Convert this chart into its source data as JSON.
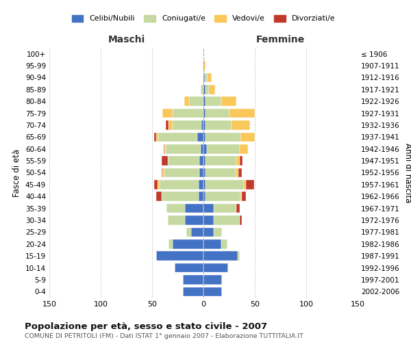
{
  "age_groups": [
    "0-4",
    "5-9",
    "10-14",
    "15-19",
    "20-24",
    "25-29",
    "30-34",
    "35-39",
    "40-44",
    "45-49",
    "50-54",
    "55-59",
    "60-64",
    "65-69",
    "70-74",
    "75-79",
    "80-84",
    "85-89",
    "90-94",
    "95-99",
    "100+"
  ],
  "birth_years": [
    "2002-2006",
    "1997-2001",
    "1992-1996",
    "1987-1991",
    "1982-1986",
    "1977-1981",
    "1972-1976",
    "1967-1971",
    "1962-1966",
    "1957-1961",
    "1952-1956",
    "1947-1951",
    "1942-1946",
    "1937-1941",
    "1932-1936",
    "1927-1931",
    "1922-1926",
    "1917-1921",
    "1912-1916",
    "1907-1911",
    "≤ 1906"
  ],
  "maschi": {
    "celibi": [
      20,
      20,
      28,
      46,
      30,
      12,
      18,
      18,
      5,
      5,
      4,
      4,
      3,
      6,
      2,
      0,
      1,
      0,
      0,
      0,
      0
    ],
    "coniugati": [
      0,
      0,
      0,
      0,
      4,
      5,
      17,
      18,
      36,
      38,
      34,
      31,
      34,
      38,
      28,
      30,
      13,
      3,
      0,
      1,
      0
    ],
    "vedovi": [
      0,
      0,
      0,
      0,
      0,
      0,
      0,
      0,
      0,
      2,
      2,
      0,
      1,
      2,
      4,
      10,
      5,
      0,
      0,
      0,
      0
    ],
    "divorziati": [
      0,
      0,
      0,
      0,
      0,
      0,
      0,
      0,
      5,
      3,
      1,
      6,
      1,
      2,
      3,
      0,
      0,
      0,
      0,
      0,
      0
    ]
  },
  "femmine": {
    "nubili": [
      18,
      18,
      24,
      33,
      17,
      10,
      10,
      10,
      2,
      2,
      2,
      2,
      3,
      2,
      2,
      2,
      2,
      2,
      1,
      0,
      0
    ],
    "coniugate": [
      0,
      0,
      0,
      2,
      6,
      8,
      25,
      22,
      34,
      37,
      29,
      30,
      32,
      34,
      25,
      23,
      15,
      3,
      3,
      0,
      0
    ],
    "vedove": [
      0,
      0,
      0,
      0,
      0,
      0,
      0,
      0,
      1,
      2,
      3,
      3,
      8,
      14,
      18,
      25,
      15,
      6,
      4,
      2,
      0
    ],
    "divorziate": [
      0,
      0,
      0,
      0,
      0,
      0,
      2,
      3,
      4,
      8,
      3,
      3,
      0,
      0,
      0,
      0,
      0,
      0,
      0,
      0,
      0
    ]
  },
  "colors": {
    "celibi": "#4472C4",
    "coniugati": "#C5D9A0",
    "vedovi": "#FAC85A",
    "divorziati": "#C0392B"
  },
  "xlim": 150,
  "title": "Popolazione per età, sesso e stato civile - 2007",
  "subtitle": "COMUNE DI PETRITOLI (FM) - Dati ISTAT 1° gennaio 2007 - Elaborazione TUTTITALIA.IT",
  "xlabel_left": "Maschi",
  "xlabel_right": "Femmine",
  "ylabel_left": "Fasce di età",
  "ylabel_right": "Anni di nascita",
  "legend_labels": [
    "Celibi/Nubili",
    "Coniugati/e",
    "Vedovi/e",
    "Divorziati/e"
  ],
  "bg_color": "#ffffff",
  "grid_color": "#cccccc"
}
